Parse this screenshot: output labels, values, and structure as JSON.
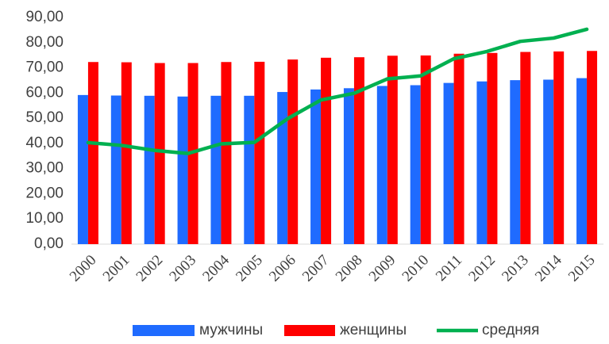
{
  "chart_data": {
    "type": "bar_line",
    "categories": [
      "2000",
      "2001",
      "2002",
      "2003",
      "2004",
      "2005",
      "2006",
      "2007",
      "2008",
      "2009",
      "2010",
      "2011",
      "2012",
      "2013",
      "2014",
      "2015"
    ],
    "series": [
      {
        "name": "мужчины",
        "color": "#1f6bff",
        "type": "bar",
        "values": [
          59.2,
          59.0,
          58.9,
          58.6,
          58.9,
          58.9,
          60.4,
          61.4,
          61.9,
          62.8,
          63.1,
          64.0,
          64.6,
          65.1,
          65.3,
          65.9
        ]
      },
      {
        "name": "женщины",
        "color": "#ff0000",
        "type": "bar",
        "values": [
          72.3,
          72.2,
          71.9,
          71.9,
          72.3,
          72.4,
          73.3,
          74.0,
          74.2,
          74.8,
          74.9,
          75.6,
          75.9,
          76.3,
          76.5,
          76.7
        ]
      },
      {
        "name": "средняя",
        "color": "#00b050",
        "type": "line",
        "values": [
          40.3,
          39.2,
          37.2,
          36.0,
          39.8,
          40.4,
          49.8,
          57.2,
          59.9,
          65.6,
          66.8,
          73.6,
          76.5,
          80.5,
          81.8,
          85.3
        ]
      }
    ],
    "ylim": [
      0,
      90
    ],
    "yticks": [
      {
        "value": 0,
        "label": "0,00"
      },
      {
        "value": 10,
        "label": "10,00"
      },
      {
        "value": 20,
        "label": "20,00"
      },
      {
        "value": 30,
        "label": "30,00"
      },
      {
        "value": 40,
        "label": "40,00"
      },
      {
        "value": 50,
        "label": "50,00"
      },
      {
        "value": 60,
        "label": "60,00"
      },
      {
        "value": 70,
        "label": "70,00"
      },
      {
        "value": 80,
        "label": "80,00"
      },
      {
        "value": 90,
        "label": "90,00"
      }
    ],
    "grid": false,
    "legend": "bottom"
  }
}
